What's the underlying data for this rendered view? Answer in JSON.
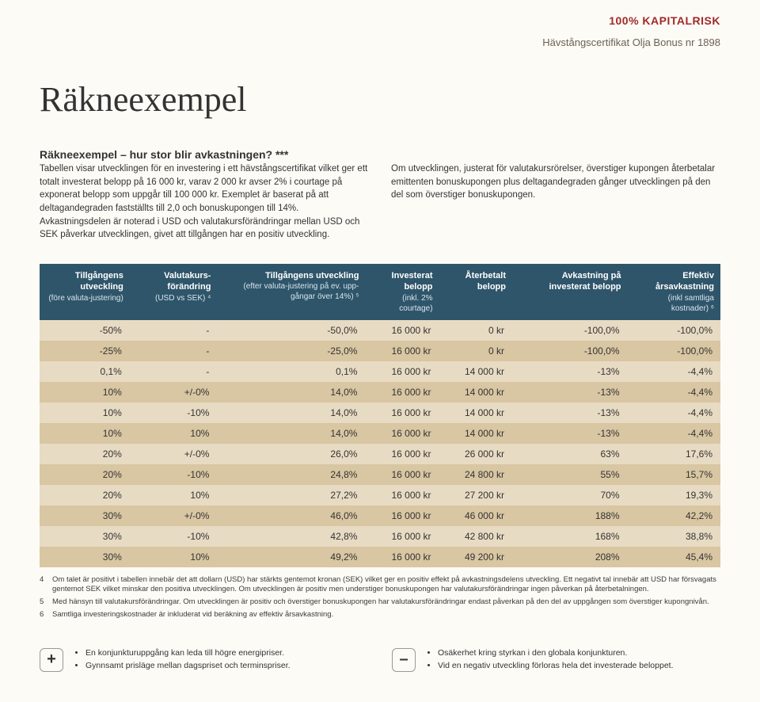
{
  "header": {
    "risk_badge": "100% KAPITALRISK",
    "subhead": "Hävstångscertifikat Olja Bonus nr 1898",
    "title": "Räkneexempel"
  },
  "intro": {
    "subtitle": "Räkneexempel – hur stor blir avkastningen? ***",
    "col1": "Tabellen visar utvecklingen för en investering i ett hävstångscertifikat vilket ger ett totalt investerat belopp på 16 000 kr, varav 2 000 kr avser 2% i courtage på exponerat belopp som uppgår till 100 000 kr. Exemplet är baserat på att deltagandegraden fastställts till 2,0 och bonuskupongen till 14%. Avkastningsdelen är noterad i USD och valutakursförändringar mellan USD och SEK påverkar utvecklingen, givet att tillgången har en positiv utveckling.",
    "col2": "Om utvecklingen, justerat för valutakursrörelser, överstiger kupongen återbetalar emittenten bonuskupongen plus deltagandegraden gånger utvecklingen på den del som överstiger bonuskupongen."
  },
  "table": {
    "columns": [
      {
        "main": "Tillgångens utveckling",
        "sub": "(före valuta-justering)"
      },
      {
        "main": "Valutakurs-förändring",
        "sub": "(USD vs SEK) ⁴"
      },
      {
        "main": "Tillgångens utveckling",
        "sub": "(efter valuta-justering på ev. upp-gångar över 14%) ⁵"
      },
      {
        "main": "Investerat belopp",
        "sub": "(inkl. 2% courtage)"
      },
      {
        "main": "Återbetalt belopp",
        "sub": ""
      },
      {
        "main": "Avkastning på investerat belopp",
        "sub": ""
      },
      {
        "main": "Effektiv årsavkastning",
        "sub": "(inkl samtliga kostnader) ⁶"
      }
    ],
    "rows": [
      [
        "-50%",
        "-",
        "-50,0%",
        "16 000 kr",
        "0 kr",
        "-100,0%",
        "-100,0%"
      ],
      [
        "-25%",
        "-",
        "-25,0%",
        "16 000 kr",
        "0 kr",
        "-100,0%",
        "-100,0%"
      ],
      [
        "0,1%",
        "-",
        "0,1%",
        "16 000 kr",
        "14 000 kr",
        "-13%",
        "-4,4%"
      ],
      [
        "10%",
        "+/-0%",
        "14,0%",
        "16 000 kr",
        "14 000 kr",
        "-13%",
        "-4,4%"
      ],
      [
        "10%",
        "-10%",
        "14,0%",
        "16 000 kr",
        "14 000 kr",
        "-13%",
        "-4,4%"
      ],
      [
        "10%",
        "10%",
        "14,0%",
        "16 000 kr",
        "14 000 kr",
        "-13%",
        "-4,4%"
      ],
      [
        "20%",
        "+/-0%",
        "26,0%",
        "16 000 kr",
        "26 000 kr",
        "63%",
        "17,6%"
      ],
      [
        "20%",
        "-10%",
        "24,8%",
        "16 000 kr",
        "24 800 kr",
        "55%",
        "15,7%"
      ],
      [
        "20%",
        "10%",
        "27,2%",
        "16 000 kr",
        "27 200 kr",
        "70%",
        "19,3%"
      ],
      [
        "30%",
        "+/-0%",
        "46,0%",
        "16 000 kr",
        "46 000 kr",
        "188%",
        "42,2%"
      ],
      [
        "30%",
        "-10%",
        "42,8%",
        "16 000 kr",
        "42 800 kr",
        "168%",
        "38,8%"
      ],
      [
        "30%",
        "10%",
        "49,2%",
        "16 000 kr",
        "49 200 kr",
        "208%",
        "45,4%"
      ]
    ],
    "header_bg": "#2f556a",
    "row_light": "#e8dbc3",
    "row_dark": "#d9c6a2"
  },
  "footnotes": [
    {
      "n": "4",
      "t": "Om talet är positivt i tabellen innebär det att dollarn (USD) har stärkts gentemot kronan (SEK) vilket ger en positiv effekt på avkastningsdelens utveckling. Ett negativt tal innebär att USD har försvagats gentemot SEK vilket minskar den positiva utvecklingen. Om utvecklingen är positiv men understiger bonuskupongen har valutakursförändringar ingen påverkan på återbetalningen."
    },
    {
      "n": "5",
      "t": "Med hänsyn till valutakursförändringar. Om utvecklingen är positiv och överstiger bonuskupongen har valutakursförändringar endast påverkan på den del av uppgången som överstiger kupongnivån."
    },
    {
      "n": "6",
      "t": "Samtliga investeringskostnader är inkluderat vid beräkning av effektiv årsavkastning."
    }
  ],
  "plus": [
    "En konjunkturuppgång kan leda till högre energipriser.",
    "Gynnsamt prisläge mellan dagspriset och terminspriser."
  ],
  "minus": [
    "Osäkerhet kring styrkan i den globala konjunkturen.",
    "Vid en negativ utveckling förloras hela det investerade beloppet."
  ]
}
